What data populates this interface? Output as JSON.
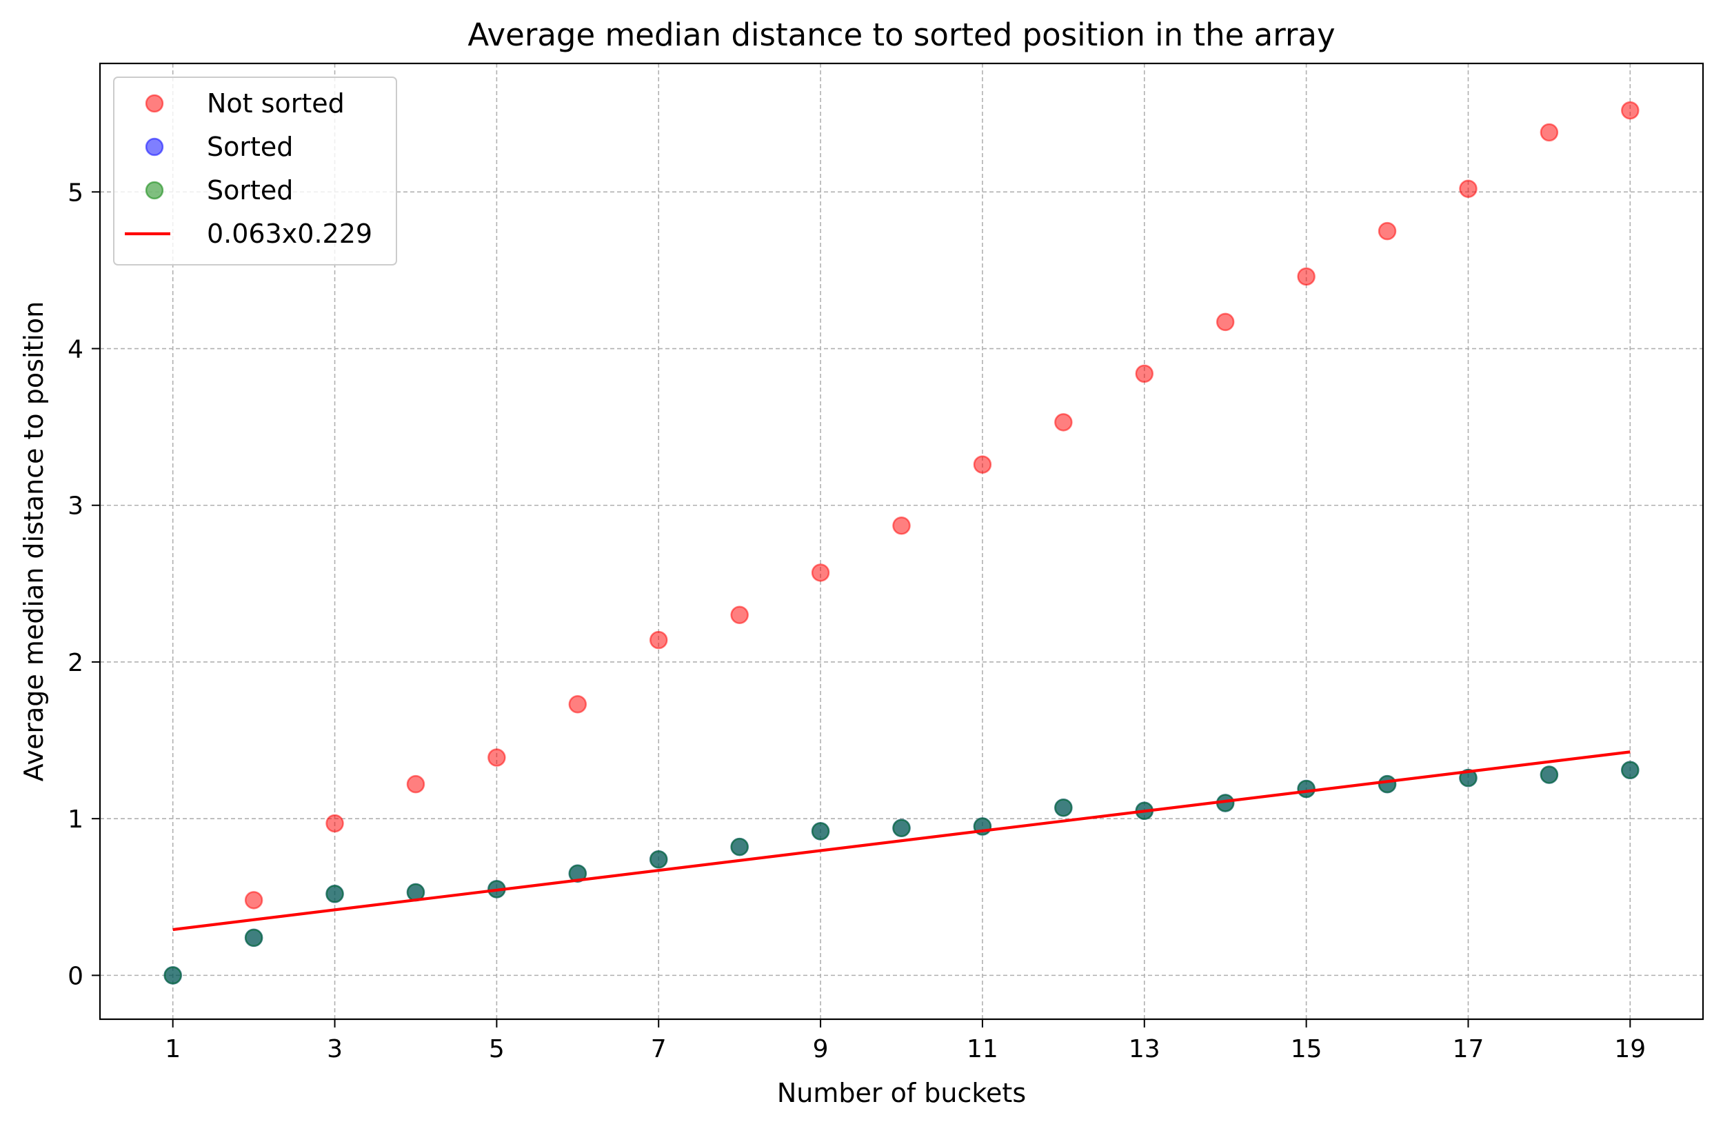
{
  "chart_data": {
    "type": "scatter",
    "title": "Average median distance to sorted position in the array",
    "xlabel": "Number of buckets",
    "ylabel": "Average median distance to position",
    "xlim": [
      0.1,
      19.9
    ],
    "ylim": [
      -0.28,
      5.82
    ],
    "xticks": [
      1,
      3,
      5,
      7,
      9,
      11,
      13,
      15,
      17,
      19
    ],
    "yticks": [
      0,
      1,
      2,
      3,
      4,
      5
    ],
    "grid": true,
    "legend_position": "top-left",
    "series": [
      {
        "name": "Not sorted",
        "kind": "scatter",
        "color": "#ff0000",
        "alpha": 0.5,
        "x": [
          2,
          3,
          4,
          5,
          6,
          7,
          8,
          9,
          10,
          11,
          12,
          13,
          14,
          15,
          16,
          17,
          18,
          19
        ],
        "y": [
          0.48,
          0.97,
          1.22,
          1.39,
          1.73,
          2.14,
          2.3,
          2.57,
          2.87,
          3.26,
          3.53,
          3.84,
          4.17,
          4.46,
          4.75,
          5.02,
          5.38,
          5.52
        ]
      },
      {
        "name": "Sorted",
        "kind": "scatter",
        "color": "#0000ff",
        "alpha": 0.5,
        "x": [
          1,
          2,
          3,
          4,
          5,
          6,
          7,
          8,
          9,
          10,
          11,
          12,
          13,
          14,
          15,
          16,
          17,
          18,
          19
        ],
        "y": [
          0.0,
          0.24,
          0.52,
          0.53,
          0.55,
          0.65,
          0.74,
          0.82,
          0.92,
          0.94,
          0.95,
          1.07,
          1.05,
          1.1,
          1.19,
          1.22,
          1.26,
          1.28,
          1.31
        ]
      },
      {
        "name": "Sorted",
        "kind": "scatter",
        "color": "#008000",
        "alpha": 0.5,
        "x": [
          1,
          2,
          3,
          4,
          5,
          6,
          7,
          8,
          9,
          10,
          11,
          12,
          13,
          14,
          15,
          16,
          17,
          18,
          19
        ],
        "y": [
          0.0,
          0.24,
          0.52,
          0.53,
          0.55,
          0.65,
          0.74,
          0.82,
          0.92,
          0.94,
          0.95,
          1.07,
          1.05,
          1.1,
          1.19,
          1.22,
          1.26,
          1.28,
          1.31
        ]
      },
      {
        "name": "0.063x0.229",
        "kind": "line",
        "color": "#ff0000",
        "x": [
          1,
          19
        ],
        "y": [
          0.292,
          1.426
        ]
      }
    ]
  }
}
